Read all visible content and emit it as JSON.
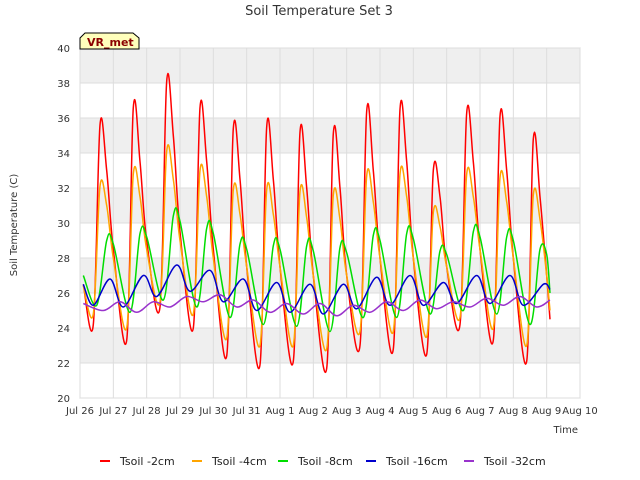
{
  "chart_data": {
    "type": "line",
    "title": "Soil Temperature Set 3",
    "xlabel": "Time",
    "ylabel": "Soil Temperature (C)",
    "badge": "VR_met",
    "xlim": [
      26.0,
      41.0
    ],
    "ylim": [
      20,
      40
    ],
    "yticks": [
      20,
      22,
      24,
      26,
      28,
      30,
      32,
      34,
      36,
      38,
      40
    ],
    "xticks": [
      {
        "v": 26,
        "label": "Jul 26"
      },
      {
        "v": 27,
        "label": "Jul 27"
      },
      {
        "v": 28,
        "label": "Jul 28"
      },
      {
        "v": 29,
        "label": "Jul 29"
      },
      {
        "v": 30,
        "label": "Jul 30"
      },
      {
        "v": 31,
        "label": "Jul 31"
      },
      {
        "v": 32,
        "label": "Aug 1"
      },
      {
        "v": 33,
        "label": "Aug 2"
      },
      {
        "v": 34,
        "label": "Aug 3"
      },
      {
        "v": 35,
        "label": "Aug 4"
      },
      {
        "v": 36,
        "label": "Aug 5"
      },
      {
        "v": 37,
        "label": "Aug 6"
      },
      {
        "v": 38,
        "label": "Aug 7"
      },
      {
        "v": 39,
        "label": "Aug 8"
      },
      {
        "v": 40,
        "label": "Aug 9"
      },
      {
        "v": 41,
        "label": "Aug 10"
      }
    ],
    "grid": true,
    "legend_position": "bottom",
    "series": [
      {
        "name": "Tsoil -2cm",
        "color": "#ff0000",
        "points": [
          [
            26.1,
            26.5
          ],
          [
            26.4,
            24.2
          ],
          [
            26.6,
            35.6
          ],
          [
            26.8,
            33.0
          ],
          [
            27.0,
            28.5
          ],
          [
            27.4,
            23.3
          ],
          [
            27.6,
            36.6
          ],
          [
            27.8,
            33.5
          ],
          [
            28.0,
            29.0
          ],
          [
            28.4,
            25.2
          ],
          [
            28.6,
            38.1
          ],
          [
            28.8,
            35.0
          ],
          [
            29.0,
            29.5
          ],
          [
            29.4,
            24.0
          ],
          [
            29.6,
            36.6
          ],
          [
            29.8,
            33.5
          ],
          [
            30.0,
            28.5
          ],
          [
            30.4,
            22.4
          ],
          [
            30.6,
            35.4
          ],
          [
            30.8,
            32.5
          ],
          [
            31.0,
            27.5
          ],
          [
            31.4,
            21.9
          ],
          [
            31.6,
            35.5
          ],
          [
            31.8,
            32.5
          ],
          [
            32.0,
            27.5
          ],
          [
            32.4,
            22.1
          ],
          [
            32.6,
            35.2
          ],
          [
            32.8,
            32.0
          ],
          [
            33.0,
            27.0
          ],
          [
            33.4,
            21.7
          ],
          [
            33.6,
            35.1
          ],
          [
            33.8,
            32.0
          ],
          [
            34.0,
            27.0
          ],
          [
            34.4,
            23.0
          ],
          [
            34.6,
            36.4
          ],
          [
            34.8,
            33.0
          ],
          [
            35.0,
            28.0
          ],
          [
            35.4,
            22.8
          ],
          [
            35.6,
            36.5
          ],
          [
            35.8,
            33.5
          ],
          [
            36.0,
            28.0
          ],
          [
            36.4,
            22.5
          ],
          [
            36.6,
            33.0
          ],
          [
            36.8,
            31.5
          ],
          [
            37.0,
            27.5
          ],
          [
            37.4,
            24.2
          ],
          [
            37.6,
            36.3
          ],
          [
            37.8,
            33.5
          ],
          [
            38.0,
            28.5
          ],
          [
            38.4,
            23.3
          ],
          [
            38.6,
            36.1
          ],
          [
            38.8,
            33.0
          ],
          [
            39.0,
            28.0
          ],
          [
            39.4,
            22.1
          ],
          [
            39.6,
            34.8
          ],
          [
            39.8,
            31.5
          ],
          [
            40.0,
            27.0
          ],
          [
            40.1,
            24.5
          ]
        ]
      },
      {
        "name": "Tsoil -4cm",
        "color": "#ffa500",
        "points": [
          [
            26.1,
            26.4
          ],
          [
            26.4,
            24.8
          ],
          [
            26.6,
            32.1
          ],
          [
            26.8,
            31.0
          ],
          [
            27.0,
            28.0
          ],
          [
            27.4,
            24.0
          ],
          [
            27.6,
            32.8
          ],
          [
            27.8,
            31.5
          ],
          [
            28.0,
            28.5
          ],
          [
            28.4,
            25.5
          ],
          [
            28.6,
            34.1
          ],
          [
            28.8,
            32.5
          ],
          [
            29.0,
            29.0
          ],
          [
            29.4,
            24.8
          ],
          [
            29.6,
            33.0
          ],
          [
            29.8,
            31.5
          ],
          [
            30.0,
            28.0
          ],
          [
            30.4,
            23.4
          ],
          [
            30.6,
            31.9
          ],
          [
            30.8,
            30.5
          ],
          [
            31.0,
            27.5
          ],
          [
            31.4,
            23.0
          ],
          [
            31.6,
            31.9
          ],
          [
            31.8,
            30.5
          ],
          [
            32.0,
            27.5
          ],
          [
            32.4,
            23.0
          ],
          [
            32.6,
            31.8
          ],
          [
            32.8,
            30.3
          ],
          [
            33.0,
            27.0
          ],
          [
            33.4,
            22.8
          ],
          [
            33.6,
            31.6
          ],
          [
            33.8,
            30.2
          ],
          [
            34.0,
            27.0
          ],
          [
            34.4,
            23.8
          ],
          [
            34.6,
            32.7
          ],
          [
            34.8,
            31.2
          ],
          [
            35.0,
            28.0
          ],
          [
            35.4,
            23.8
          ],
          [
            35.6,
            32.8
          ],
          [
            35.8,
            31.5
          ],
          [
            36.0,
            28.0
          ],
          [
            36.4,
            23.5
          ],
          [
            36.6,
            30.6
          ],
          [
            36.8,
            29.8
          ],
          [
            37.0,
            27.5
          ],
          [
            37.4,
            24.6
          ],
          [
            37.6,
            32.8
          ],
          [
            37.8,
            31.5
          ],
          [
            38.0,
            28.5
          ],
          [
            38.4,
            24.0
          ],
          [
            38.6,
            32.6
          ],
          [
            38.8,
            31.2
          ],
          [
            39.0,
            28.0
          ],
          [
            39.4,
            23.0
          ],
          [
            39.6,
            31.6
          ],
          [
            39.8,
            30.2
          ],
          [
            40.0,
            27.0
          ],
          [
            40.1,
            25.0
          ]
        ]
      },
      {
        "name": "Tsoil -8cm",
        "color": "#00dd00",
        "points": [
          [
            26.1,
            27.0
          ],
          [
            26.5,
            25.3
          ],
          [
            26.8,
            29.0
          ],
          [
            27.0,
            28.8
          ],
          [
            27.5,
            24.9
          ],
          [
            27.8,
            29.4
          ],
          [
            28.0,
            29.2
          ],
          [
            28.5,
            25.6
          ],
          [
            28.8,
            30.4
          ],
          [
            29.0,
            30.1
          ],
          [
            29.5,
            25.2
          ],
          [
            29.8,
            29.7
          ],
          [
            30.0,
            29.4
          ],
          [
            30.5,
            24.6
          ],
          [
            30.8,
            28.8
          ],
          [
            31.0,
            28.5
          ],
          [
            31.5,
            24.2
          ],
          [
            31.8,
            28.7
          ],
          [
            32.0,
            28.5
          ],
          [
            32.5,
            24.1
          ],
          [
            32.8,
            28.7
          ],
          [
            33.0,
            28.4
          ],
          [
            33.5,
            23.8
          ],
          [
            33.8,
            28.6
          ],
          [
            34.0,
            28.3
          ],
          [
            34.5,
            24.6
          ],
          [
            34.8,
            29.3
          ],
          [
            35.0,
            29.0
          ],
          [
            35.5,
            24.6
          ],
          [
            35.8,
            29.4
          ],
          [
            36.0,
            29.1
          ],
          [
            36.5,
            24.8
          ],
          [
            36.8,
            28.4
          ],
          [
            37.0,
            28.2
          ],
          [
            37.5,
            25.0
          ],
          [
            37.8,
            29.5
          ],
          [
            38.0,
            29.2
          ],
          [
            38.5,
            24.8
          ],
          [
            38.8,
            29.2
          ],
          [
            39.0,
            29.0
          ],
          [
            39.5,
            24.2
          ],
          [
            39.8,
            28.5
          ],
          [
            40.0,
            28.2
          ],
          [
            40.1,
            26.0
          ]
        ]
      },
      {
        "name": "Tsoil -16cm",
        "color": "#0000cc",
        "points": [
          [
            26.1,
            26.5
          ],
          [
            26.4,
            25.3
          ],
          [
            26.9,
            26.8
          ],
          [
            27.3,
            25.2
          ],
          [
            27.9,
            27.0
          ],
          [
            28.3,
            25.8
          ],
          [
            28.9,
            27.6
          ],
          [
            29.3,
            26.1
          ],
          [
            29.9,
            27.3
          ],
          [
            30.3,
            25.5
          ],
          [
            30.9,
            26.8
          ],
          [
            31.3,
            25.0
          ],
          [
            31.9,
            26.6
          ],
          [
            32.3,
            24.9
          ],
          [
            32.9,
            26.5
          ],
          [
            33.3,
            24.8
          ],
          [
            33.9,
            26.5
          ],
          [
            34.3,
            25.1
          ],
          [
            34.9,
            26.9
          ],
          [
            35.3,
            25.3
          ],
          [
            35.9,
            27.0
          ],
          [
            36.3,
            25.3
          ],
          [
            36.9,
            26.6
          ],
          [
            37.3,
            25.4
          ],
          [
            37.9,
            27.0
          ],
          [
            38.3,
            25.4
          ],
          [
            38.9,
            27.0
          ],
          [
            39.3,
            25.3
          ],
          [
            39.9,
            26.5
          ],
          [
            40.1,
            26.2
          ]
        ]
      },
      {
        "name": "Tsoil -32cm",
        "color": "#9933cc",
        "points": [
          [
            26.1,
            25.4
          ],
          [
            26.7,
            25.0
          ],
          [
            27.2,
            25.5
          ],
          [
            27.7,
            24.9
          ],
          [
            28.2,
            25.5
          ],
          [
            28.7,
            25.2
          ],
          [
            29.2,
            25.8
          ],
          [
            29.7,
            25.5
          ],
          [
            30.2,
            25.9
          ],
          [
            30.7,
            25.2
          ],
          [
            31.2,
            25.6
          ],
          [
            31.7,
            24.9
          ],
          [
            32.2,
            25.4
          ],
          [
            32.7,
            24.8
          ],
          [
            33.2,
            25.4
          ],
          [
            33.7,
            24.7
          ],
          [
            34.2,
            25.3
          ],
          [
            34.7,
            24.9
          ],
          [
            35.2,
            25.5
          ],
          [
            35.7,
            25.0
          ],
          [
            36.2,
            25.6
          ],
          [
            36.7,
            25.1
          ],
          [
            37.2,
            25.5
          ],
          [
            37.7,
            25.2
          ],
          [
            38.2,
            25.7
          ],
          [
            38.7,
            25.3
          ],
          [
            39.2,
            25.8
          ],
          [
            39.7,
            25.2
          ],
          [
            40.1,
            25.6
          ]
        ]
      }
    ]
  }
}
